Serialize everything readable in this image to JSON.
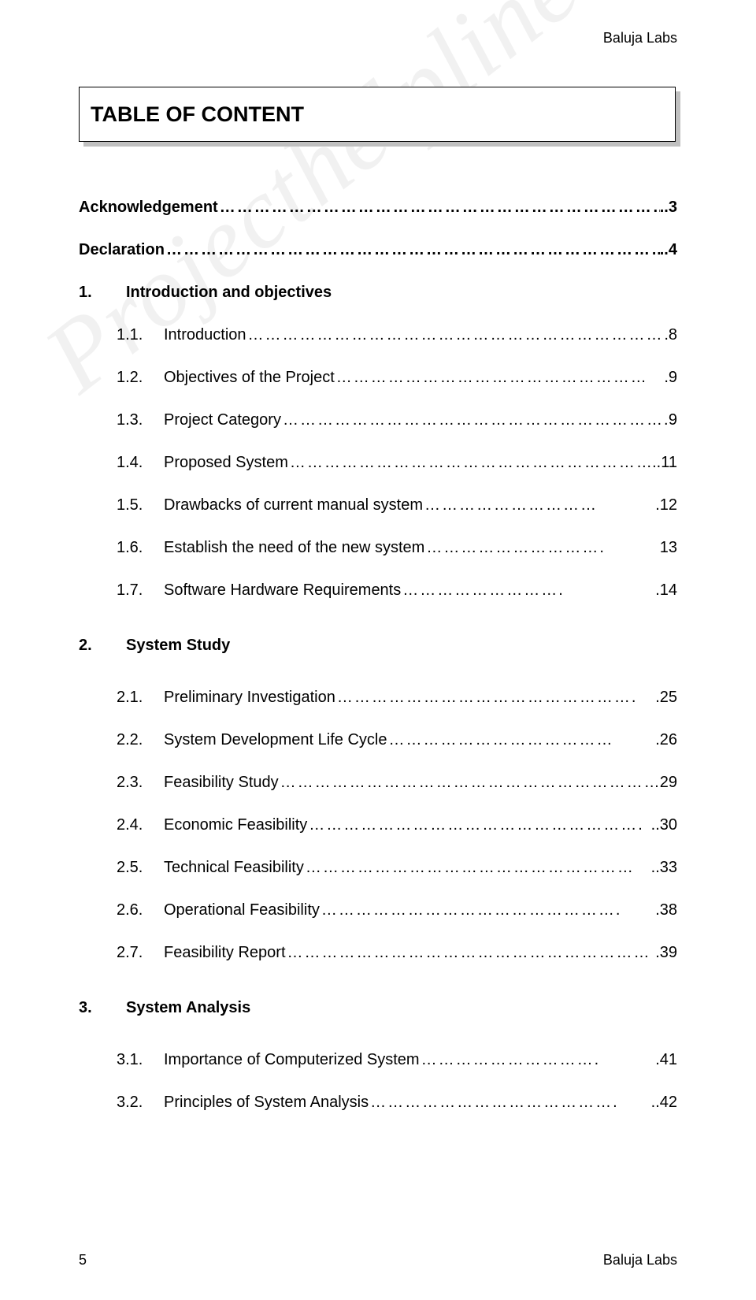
{
  "header_right": "Baluja Labs",
  "title": "TABLE OF CONTENT",
  "watermark": "Projecthelpline.in",
  "footer": {
    "page_number": "5",
    "right": "Baluja Labs"
  },
  "entries": [
    {
      "num": "",
      "label": "Acknowledgement",
      "leader": "…………………………………………………………………………",
      "page": "..3",
      "bold": true,
      "sub": false,
      "gap_before": false
    },
    {
      "num": "",
      "label": "Declaration",
      "leader": "…………………………………………………………………………………",
      "page": "..4",
      "bold": true,
      "sub": false,
      "gap_before": false
    },
    {
      "num": "1.",
      "label": "Introduction and objectives",
      "leader": "",
      "page": "",
      "bold": true,
      "sub": false,
      "gap_before": false
    },
    {
      "num": "1.1.",
      "label": "Introduction",
      "leader": "………………………………………………………………………",
      "page": "8",
      "bold": false,
      "sub": true,
      "gap_before": false
    },
    {
      "num": "1.2.",
      "label": "Objectives of the Project",
      "leader": "………………………………………………",
      "page": ".9",
      "bold": false,
      "sub": true,
      "gap_before": false
    },
    {
      "num": "1.3.",
      "label": "Project Category",
      "leader": "………………………………………………………….",
      "page": "9",
      "bold": false,
      "sub": true,
      "gap_before": false
    },
    {
      "num": "1.4.",
      "label": "Proposed System",
      "leader": "……………………………………………………….",
      "page": "..11",
      "bold": false,
      "sub": true,
      "gap_before": false
    },
    {
      "num": "1.5.",
      "label": "Drawbacks of current manual system",
      "leader": "…………………………",
      "page": ".12",
      "bold": false,
      "sub": true,
      "gap_before": false
    },
    {
      "num": "1.6.",
      "label": "Establish the need of the new system",
      "leader": "………………………….",
      "page": "13",
      "bold": false,
      "sub": true,
      "gap_before": false
    },
    {
      "num": "1.7.",
      "label": "Software Hardware Requirements",
      "leader": "……………………….",
      "page": ".14",
      "bold": false,
      "sub": true,
      "gap_before": false
    },
    {
      "num": "2.",
      "label": "System Study",
      "leader": "",
      "page": "",
      "bold": true,
      "sub": false,
      "gap_before": true
    },
    {
      "num": "2.1.",
      "label": "Preliminary Investigation",
      "leader": "…………………………………………….",
      "page": ".25",
      "bold": false,
      "sub": true,
      "gap_before": false
    },
    {
      "num": "2.2.",
      "label": "System Development Life Cycle",
      "leader": "…………………………………",
      "page": ".26",
      "bold": false,
      "sub": true,
      "gap_before": false
    },
    {
      "num": "2.3.",
      "label": "Feasibility Study",
      "leader": "………………………………………………………….",
      "page": "29",
      "bold": false,
      "sub": true,
      "gap_before": false
    },
    {
      "num": "2.4.",
      "label": "Economic Feasibility",
      "leader": "………………………………………………….",
      "page": "..30",
      "bold": false,
      "sub": true,
      "gap_before": false
    },
    {
      "num": "2.5.",
      "label": "Technical Feasibility",
      "leader": "…………………………………………………",
      "page": "..33",
      "bold": false,
      "sub": true,
      "gap_before": false
    },
    {
      "num": "2.6.",
      "label": "Operational Feasibility",
      "leader": "…………………………………………….",
      "page": ".38",
      "bold": false,
      "sub": true,
      "gap_before": false
    },
    {
      "num": "2.7.",
      "label": "Feasibility  Report",
      "leader": "………………………………………………………",
      "page": ".39",
      "bold": false,
      "sub": true,
      "gap_before": false
    },
    {
      "num": "3.",
      "label": "System Analysis",
      "leader": "",
      "page": "",
      "bold": true,
      "sub": false,
      "gap_before": true
    },
    {
      "num": "3.1.",
      "label": "Importance of Computerized System",
      "leader": "………………………….",
      "page": ".41",
      "bold": false,
      "sub": true,
      "gap_before": false
    },
    {
      "num": "3.2.",
      "label": "Principles of System Analysis",
      "leader": "…………………………………….",
      "page": "..42",
      "bold": false,
      "sub": true,
      "gap_before": false
    }
  ]
}
